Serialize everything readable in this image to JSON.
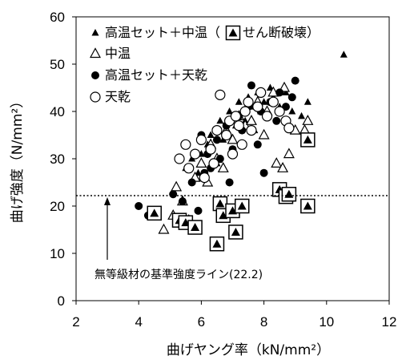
{
  "chart_data": {
    "type": "scatter",
    "xlabel": "曲げヤング率（kN/mm²）",
    "ylabel": "曲げ強度（N/mm²）",
    "xlim": [
      2,
      12
    ],
    "ylim": [
      0,
      60
    ],
    "xticks": [
      "2",
      "4",
      "6",
      "8",
      "10",
      "12"
    ],
    "yticks": [
      "0",
      "10",
      "20",
      "30",
      "40",
      "50",
      "60"
    ],
    "grid": false,
    "legend_position": "top-left",
    "reference_line": {
      "y": 22.2,
      "label": "無等級材の基準強度ライン(22.2)",
      "style": "dotted"
    },
    "series": [
      {
        "name": "高温セット＋中温",
        "marker": "filled-triangle-small",
        "points": [
          [
            5.2,
            24
          ],
          [
            5.5,
            28
          ],
          [
            5.7,
            30
          ],
          [
            5.9,
            27
          ],
          [
            6.0,
            31
          ],
          [
            6.2,
            33
          ],
          [
            6.3,
            35
          ],
          [
            6.5,
            29
          ],
          [
            6.6,
            38
          ],
          [
            6.7,
            34
          ],
          [
            6.8,
            36
          ],
          [
            6.9,
            40
          ],
          [
            7.0,
            39
          ],
          [
            7.1,
            37
          ],
          [
            7.2,
            42
          ],
          [
            7.3,
            33
          ],
          [
            7.4,
            38
          ],
          [
            7.5,
            43
          ],
          [
            7.6,
            41
          ],
          [
            7.7,
            36
          ],
          [
            7.8,
            44
          ],
          [
            7.9,
            40
          ],
          [
            8.0,
            42
          ],
          [
            8.1,
            39
          ],
          [
            8.2,
            45
          ],
          [
            8.3,
            43
          ],
          [
            8.5,
            41
          ],
          [
            8.7,
            44
          ],
          [
            8.9,
            40
          ],
          [
            9.2,
            39
          ],
          [
            9.4,
            42
          ],
          [
            10.55,
            52
          ]
        ]
      },
      {
        "name": "中温",
        "marker": "open-triangle",
        "points": [
          [
            4.8,
            15
          ],
          [
            5.1,
            18
          ],
          [
            5.2,
            24
          ],
          [
            5.4,
            21
          ],
          [
            5.6,
            17
          ],
          [
            5.8,
            26
          ],
          [
            6.0,
            29
          ],
          [
            6.2,
            25
          ],
          [
            6.3,
            33
          ],
          [
            6.5,
            30
          ],
          [
            6.7,
            28
          ],
          [
            6.8,
            36
          ],
          [
            7.0,
            34
          ],
          [
            7.2,
            39
          ],
          [
            7.4,
            37
          ],
          [
            7.6,
            38
          ],
          [
            7.8,
            42
          ],
          [
            8.0,
            35
          ],
          [
            8.1,
            40
          ],
          [
            8.3,
            44
          ],
          [
            8.4,
            29
          ],
          [
            8.6,
            28
          ],
          [
            8.8,
            31
          ],
          [
            9.0,
            36
          ],
          [
            8.65,
            45
          ],
          [
            9.4,
            38
          ],
          [
            9.3,
            36
          ]
        ]
      },
      {
        "name": "高温セット＋天乾",
        "marker": "filled-circle",
        "points": [
          [
            4.0,
            20
          ],
          [
            4.3,
            18
          ],
          [
            5.1,
            22.5
          ],
          [
            5.4,
            21
          ],
          [
            5.7,
            25
          ],
          [
            5.9,
            19
          ],
          [
            6.1,
            27
          ],
          [
            6.2,
            31
          ],
          [
            6.3,
            28
          ],
          [
            6.5,
            34
          ],
          [
            6.6,
            30
          ],
          [
            6.8,
            37
          ],
          [
            7.0,
            32
          ],
          [
            7.2,
            39
          ],
          [
            7.3,
            36
          ],
          [
            7.5,
            41
          ],
          [
            7.6,
            45.5
          ],
          [
            7.8,
            33
          ],
          [
            7.9,
            40
          ],
          [
            8.0,
            27
          ],
          [
            8.2,
            42
          ],
          [
            8.4,
            38
          ],
          [
            8.5,
            44
          ],
          [
            8.7,
            41
          ],
          [
            8.9,
            43
          ],
          [
            9.0,
            46.5
          ],
          [
            6.0,
            35
          ],
          [
            6.9,
            25
          ]
        ]
      },
      {
        "name": "天乾",
        "marker": "open-circle",
        "points": [
          [
            5.3,
            30
          ],
          [
            5.5,
            33
          ],
          [
            5.6,
            28
          ],
          [
            5.8,
            31
          ],
          [
            6.0,
            34
          ],
          [
            6.1,
            26
          ],
          [
            6.3,
            32
          ],
          [
            6.4,
            29
          ],
          [
            6.5,
            36
          ],
          [
            6.6,
            43.5
          ],
          [
            6.8,
            35
          ],
          [
            6.9,
            38
          ],
          [
            7.0,
            31
          ],
          [
            7.1,
            39
          ],
          [
            7.2,
            37
          ],
          [
            7.4,
            40
          ],
          [
            7.5,
            42
          ],
          [
            7.6,
            36
          ],
          [
            7.8,
            41
          ],
          [
            7.9,
            44
          ],
          [
            8.1,
            39
          ],
          [
            8.3,
            42
          ],
          [
            8.5,
            40
          ],
          [
            8.7,
            38
          ],
          [
            8.8,
            36.5
          ],
          [
            7.3,
            33
          ]
        ]
      },
      {
        "name": "せん断破壊",
        "marker": "filled-triangle-in-open-square",
        "points": [
          [
            4.5,
            18.5
          ],
          [
            5.3,
            17
          ],
          [
            5.5,
            16.5
          ],
          [
            5.8,
            15.5
          ],
          [
            6.5,
            12
          ],
          [
            6.6,
            20.5
          ],
          [
            6.7,
            18
          ],
          [
            7.0,
            19
          ],
          [
            7.1,
            14.5
          ],
          [
            7.3,
            20
          ],
          [
            8.5,
            23.5
          ],
          [
            8.7,
            22
          ],
          [
            8.8,
            22.5
          ],
          [
            9.4,
            20
          ],
          [
            9.4,
            34
          ]
        ]
      }
    ]
  },
  "legend": [
    {
      "marker": "filled-triangle-small",
      "label": "高温セット＋中温（"
    },
    {
      "marker": "filled-triangle-in-open-square",
      "label": "せん断破壊）"
    },
    {
      "marker": "open-triangle",
      "label": "中温"
    },
    {
      "marker": "filled-circle",
      "label": "高温セット＋天乾"
    },
    {
      "marker": "open-circle",
      "label": "天乾"
    }
  ],
  "colors": {
    "ink": "#000000",
    "background": "#ffffff"
  }
}
